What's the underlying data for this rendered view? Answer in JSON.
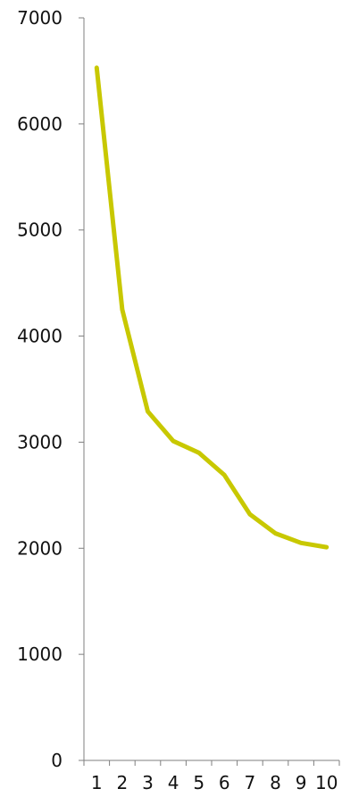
{
  "chart_data": {
    "type": "line",
    "title": "",
    "xlabel": "",
    "ylabel": "",
    "categories": [
      "1",
      "2",
      "3",
      "4",
      "5",
      "6",
      "7",
      "8",
      "9",
      "10"
    ],
    "series": [
      {
        "values": [
          6530,
          4250,
          3290,
          3010,
          2900,
          2690,
          2320,
          2140,
          2050,
          2010
        ],
        "color": "#c8c800"
      }
    ],
    "ylim": [
      0,
      7000
    ],
    "yticks": [
      "0",
      "1000",
      "2000",
      "3000",
      "4000",
      "5000",
      "6000",
      "7000"
    ],
    "grid": false,
    "legend": "none",
    "colors": {
      "axis": "#7f7f7f",
      "text": "#111111",
      "line": "#c8c800"
    }
  }
}
